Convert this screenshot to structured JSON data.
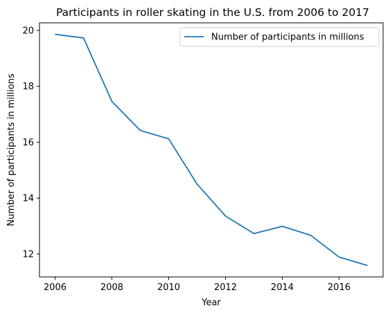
{
  "chart_data": {
    "type": "line",
    "title": "Participants in roller skating in the U.S. from 2006 to 2017",
    "xlabel": "Year",
    "ylabel": "Number of participants in millions",
    "x": [
      2006,
      2007,
      2008,
      2009,
      2010,
      2011,
      2012,
      2013,
      2014,
      2015,
      2016,
      2017
    ],
    "series": [
      {
        "name": "Number of participants in millions",
        "values": [
          19.86,
          19.73,
          17.46,
          16.42,
          16.12,
          14.5,
          13.36,
          12.73,
          12.99,
          12.67,
          11.89,
          11.59
        ],
        "color": "#1f77b4"
      }
    ],
    "xlim": [
      2005.45,
      2017.55
    ],
    "ylim": [
      11.18,
      20.27
    ],
    "xticks": [
      2006,
      2008,
      2010,
      2012,
      2014,
      2016
    ],
    "yticks": [
      12,
      14,
      16,
      18,
      20
    ],
    "grid": false,
    "legend_position": "top-right"
  }
}
